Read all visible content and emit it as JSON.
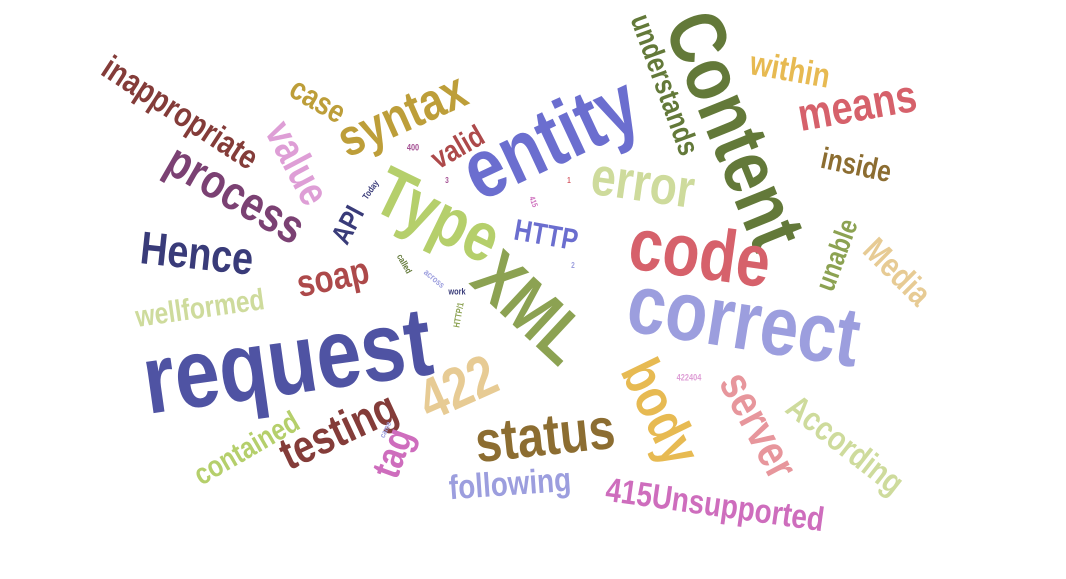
{
  "words": [
    {
      "text": "request",
      "color": "#4f53a3"
    },
    {
      "text": "correct",
      "color": "#9c9ede"
    },
    {
      "text": "Content",
      "color": "#637939"
    },
    {
      "text": "entity",
      "color": "#6b6ecf"
    },
    {
      "text": "code",
      "color": "#d6616b"
    },
    {
      "text": "XML",
      "color": "#8ca252"
    },
    {
      "text": "Type",
      "color": "#b5cf6b"
    },
    {
      "text": "status",
      "color": "#8c6d31"
    },
    {
      "text": "error",
      "color": "#cedb9c"
    },
    {
      "text": "422",
      "color": "#e7cb94"
    },
    {
      "text": "body",
      "color": "#e7ba52"
    },
    {
      "text": "server",
      "color": "#e7969c"
    },
    {
      "text": "syntax",
      "color": "#bd9e39"
    },
    {
      "text": "process",
      "color": "#7b4173"
    },
    {
      "text": "Hence",
      "color": "#393b79"
    },
    {
      "text": "testing",
      "color": "#843c39"
    },
    {
      "text": "means",
      "color": "#d6616b"
    },
    {
      "text": "value",
      "color": "#de9ed6"
    },
    {
      "text": "According",
      "color": "#cedb9c"
    },
    {
      "text": "415Unsupported",
      "color": "#ce6dbd"
    },
    {
      "text": "inappropriate",
      "color": "#843c39"
    },
    {
      "text": "understands",
      "color": "#637939"
    },
    {
      "text": "following",
      "color": "#9c9ede"
    },
    {
      "text": "soap",
      "color": "#ad494a"
    },
    {
      "text": "tag",
      "color": "#ce6dbd"
    },
    {
      "text": "contained",
      "color": "#b5cf6b"
    },
    {
      "text": "wellformed",
      "color": "#cedb9c"
    },
    {
      "text": "Media",
      "color": "#e7cb94"
    },
    {
      "text": "within",
      "color": "#e7ba52"
    },
    {
      "text": "inside",
      "color": "#8c6d31"
    },
    {
      "text": "unable",
      "color": "#8ca252"
    },
    {
      "text": "HTTP",
      "color": "#6b6ecf"
    },
    {
      "text": "case",
      "color": "#bd9e39"
    },
    {
      "text": "valid",
      "color": "#ad494a"
    },
    {
      "text": "API",
      "color": "#393b79"
    },
    {
      "text": "400",
      "color": "#a55194"
    },
    {
      "text": "Today",
      "color": "#393b79"
    },
    {
      "text": "3",
      "color": "#a55194"
    },
    {
      "text": "1",
      "color": "#d6616b"
    },
    {
      "text": "415",
      "color": "#ce6dbd"
    },
    {
      "text": "2",
      "color": "#9c9ede"
    },
    {
      "text": "called",
      "color": "#637939"
    },
    {
      "text": "across",
      "color": "#9c9ede"
    },
    {
      "text": "work",
      "color": "#393b79"
    },
    {
      "text": "HTTP/1",
      "color": "#8ca252"
    },
    {
      "text": "came",
      "color": "#9c9ede"
    },
    {
      "text": "422404",
      "color": "#de9ed6"
    }
  ]
}
